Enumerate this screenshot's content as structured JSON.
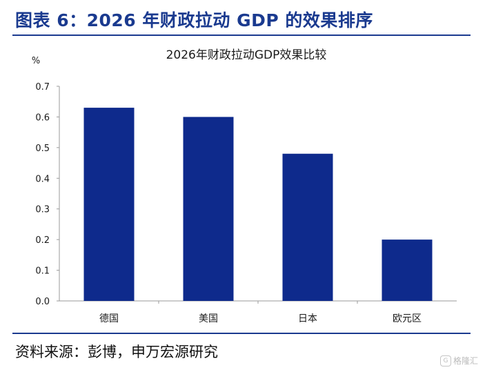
{
  "header": {
    "figure_title": "图表 6：2026 年财政拉动 GDP 的效果排序"
  },
  "footer": {
    "source": "资料来源：彭博，申万宏源研究",
    "watermark": "格隆汇",
    "watermark_mark": "G"
  },
  "colors": {
    "accent": "#1a3a8f",
    "bar": "#0e2a8c"
  },
  "chart_data": {
    "type": "bar",
    "title": "2026年财政拉动GDP效果比较",
    "ylabel": "%",
    "xlabel": "",
    "categories": [
      "德国",
      "美国",
      "日本",
      "欧元区"
    ],
    "values": [
      0.63,
      0.6,
      0.48,
      0.2
    ],
    "ylim": [
      0,
      0.7
    ],
    "yticks": [
      "0.0",
      "0.1",
      "0.2",
      "0.3",
      "0.4",
      "0.5",
      "0.6",
      "0.7"
    ],
    "grid": false,
    "legend": "none"
  }
}
